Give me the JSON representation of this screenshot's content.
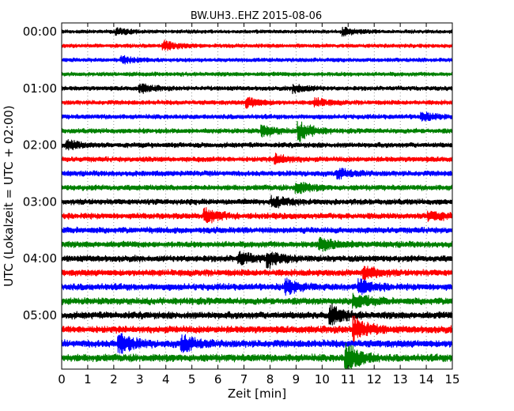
{
  "chart_data": {
    "type": "line",
    "title": "BW.UH3..EHZ 2015-08-06",
    "xlabel": "Zeit  [min]",
    "ylabel": "UTC (Lokalzeit = UTC + 02:00)",
    "xlim": [
      0,
      15
    ],
    "x_ticks": [
      "0",
      "1",
      "2",
      "3",
      "4",
      "5",
      "6",
      "7",
      "8",
      "9",
      "10",
      "11",
      "12",
      "13",
      "14",
      "15"
    ],
    "y_ticks": [
      "00:00",
      "01:00",
      "02:00",
      "03:00",
      "04:00",
      "05:00"
    ],
    "trace_count": 24,
    "trace_interval_min": 15,
    "series_colors": [
      "#000000",
      "#ff0000",
      "#0000ff",
      "#008000"
    ],
    "grid": true,
    "legend": "none",
    "events": [
      {
        "row": 0,
        "x": 2.2,
        "amp": 1.3
      },
      {
        "row": 0,
        "x": 10.9,
        "amp": 1.5
      },
      {
        "row": 1,
        "x": 4.0,
        "amp": 1.8
      },
      {
        "row": 2,
        "x": 2.4,
        "amp": 1.2
      },
      {
        "row": 4,
        "x": 3.1,
        "amp": 1.3
      },
      {
        "row": 4,
        "x": 9.0,
        "amp": 1.4
      },
      {
        "row": 5,
        "x": 7.2,
        "amp": 1.6
      },
      {
        "row": 5,
        "x": 9.8,
        "amp": 1.3
      },
      {
        "row": 6,
        "x": 13.9,
        "amp": 1.2
      },
      {
        "row": 7,
        "x": 9.2,
        "amp": 3.0
      },
      {
        "row": 7,
        "x": 7.8,
        "amp": 1.6
      },
      {
        "row": 8,
        "x": 0.3,
        "amp": 1.3
      },
      {
        "row": 9,
        "x": 8.3,
        "amp": 1.3
      },
      {
        "row": 10,
        "x": 10.7,
        "amp": 1.2
      },
      {
        "row": 11,
        "x": 9.1,
        "amp": 1.5
      },
      {
        "row": 12,
        "x": 8.2,
        "amp": 1.4
      },
      {
        "row": 13,
        "x": 5.6,
        "amp": 1.8
      },
      {
        "row": 13,
        "x": 14.2,
        "amp": 1.3
      },
      {
        "row": 15,
        "x": 10.0,
        "amp": 1.6
      },
      {
        "row": 16,
        "x": 8.0,
        "amp": 1.8
      },
      {
        "row": 16,
        "x": 6.9,
        "amp": 1.3
      },
      {
        "row": 17,
        "x": 11.7,
        "amp": 1.4
      },
      {
        "row": 18,
        "x": 8.7,
        "amp": 1.5
      },
      {
        "row": 18,
        "x": 11.5,
        "amp": 1.6
      },
      {
        "row": 19,
        "x": 11.3,
        "amp": 1.8
      },
      {
        "row": 20,
        "x": 10.4,
        "amp": 2.0
      },
      {
        "row": 21,
        "x": 11.3,
        "amp": 2.6
      },
      {
        "row": 22,
        "x": 2.3,
        "amp": 2.0
      },
      {
        "row": 22,
        "x": 4.7,
        "amp": 1.6
      },
      {
        "row": 23,
        "x": 11.0,
        "amp": 3.2
      }
    ]
  }
}
